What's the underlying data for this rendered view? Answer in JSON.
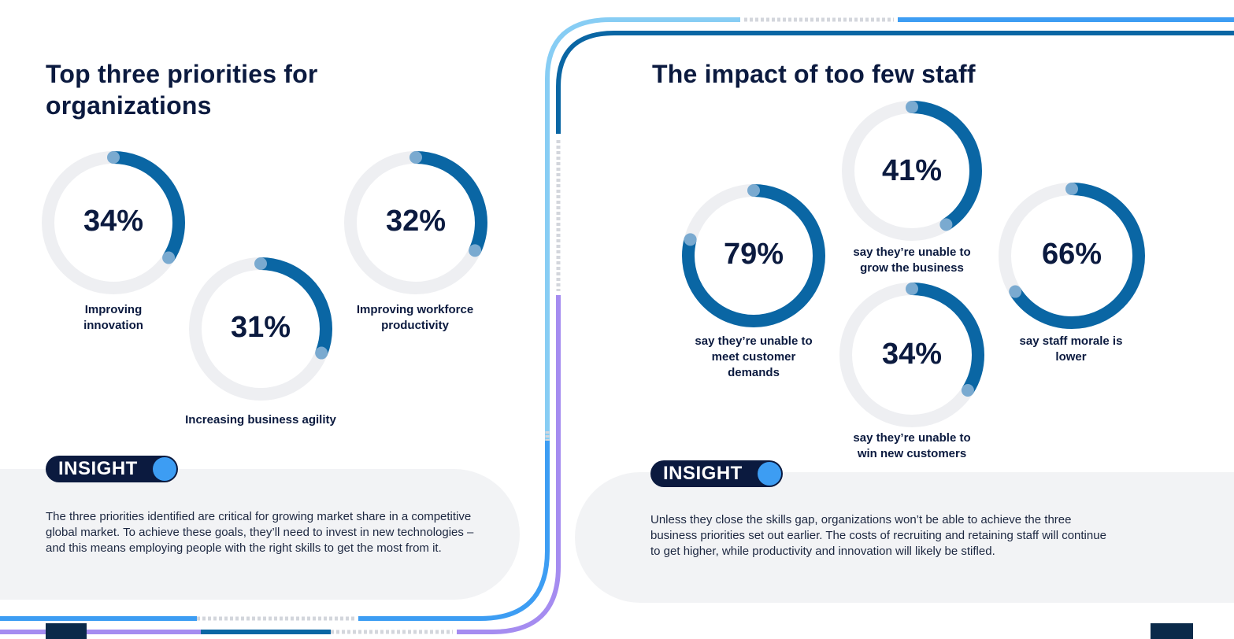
{
  "left_panel": {
    "title": "Top three priorities for organizations",
    "priorities": [
      {
        "value": "34%",
        "fraction": 0.34,
        "label": "Improving innovation"
      },
      {
        "value": "31%",
        "fraction": 0.31,
        "label": "Increasing business agility"
      },
      {
        "value": "32%",
        "fraction": 0.32,
        "label": "Improving workforce productivity"
      }
    ],
    "insight_label": "INSIGHT",
    "insight_text": "The three priorities identified are critical for growing market share in a competitive global market. To achieve these goals, they’ll need to invest in new technologies – and this means employing people with the right skills to get the most from it."
  },
  "right_panel": {
    "title": "The impact of too few staff",
    "impacts": [
      {
        "value": "79%",
        "fraction": 0.79,
        "label": "say they’re unable to meet customer demands"
      },
      {
        "value": "41%",
        "fraction": 0.41,
        "label": "say they’re unable to grow the business"
      },
      {
        "value": "34%",
        "fraction": 0.34,
        "label": "say they’re unable to win new customers"
      },
      {
        "value": "66%",
        "fraction": 0.66,
        "label": "say staff morale is lower"
      }
    ],
    "insight_label": "INSIGHT",
    "insight_text": "Unless they close the skills gap, organizations won’t be able to achieve the three business priorities set out earlier. The costs of recruiting and retaining staff will continue to get higher, while productivity and innovation will likely be stifled."
  },
  "colors": {
    "ring_track": "#eeeff2",
    "ring_fill": "#0a66a4",
    "ring_knob": "#7aaad0",
    "navy": "#0b1a3f",
    "accent_blue": "#3d9df3",
    "light_blue": "#87cdf4",
    "purple": "#a58cf0"
  }
}
